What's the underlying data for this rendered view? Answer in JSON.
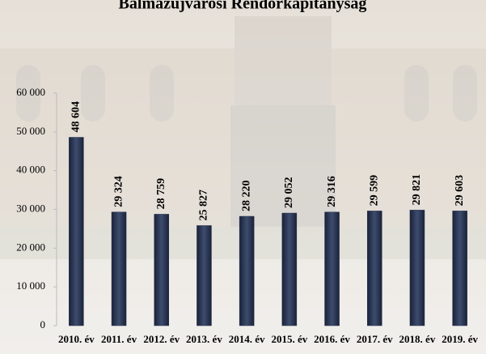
{
  "chart_data": {
    "type": "bar",
    "title": "Balmazújvárosi Rendőrkapitányság",
    "categories": [
      "2010. év",
      "2011. év",
      "2012. év",
      "2013. év",
      "2014. év",
      "2015. év",
      "2016. év",
      "2017. év",
      "2018. év",
      "2019. év"
    ],
    "values": [
      48604,
      29324,
      28759,
      25827,
      28220,
      29052,
      29316,
      29599,
      29821,
      29603
    ],
    "value_labels": [
      "48 604",
      "29 324",
      "28 759",
      "25 827",
      "28 220",
      "29 052",
      "29 316",
      "29 599",
      "29 821",
      "29 603"
    ],
    "color": "#243050",
    "ylim": [
      0,
      60000
    ],
    "yticks": [
      {
        "value": 0,
        "label": "0"
      },
      {
        "value": 10000,
        "label": "10 000"
      },
      {
        "value": 20000,
        "label": "20 000"
      },
      {
        "value": 30000,
        "label": "30 000"
      },
      {
        "value": 40000,
        "label": "40 000"
      },
      {
        "value": 50000,
        "label": "50 000"
      },
      {
        "value": 60000,
        "label": "60 000"
      }
    ],
    "grid": false
  }
}
